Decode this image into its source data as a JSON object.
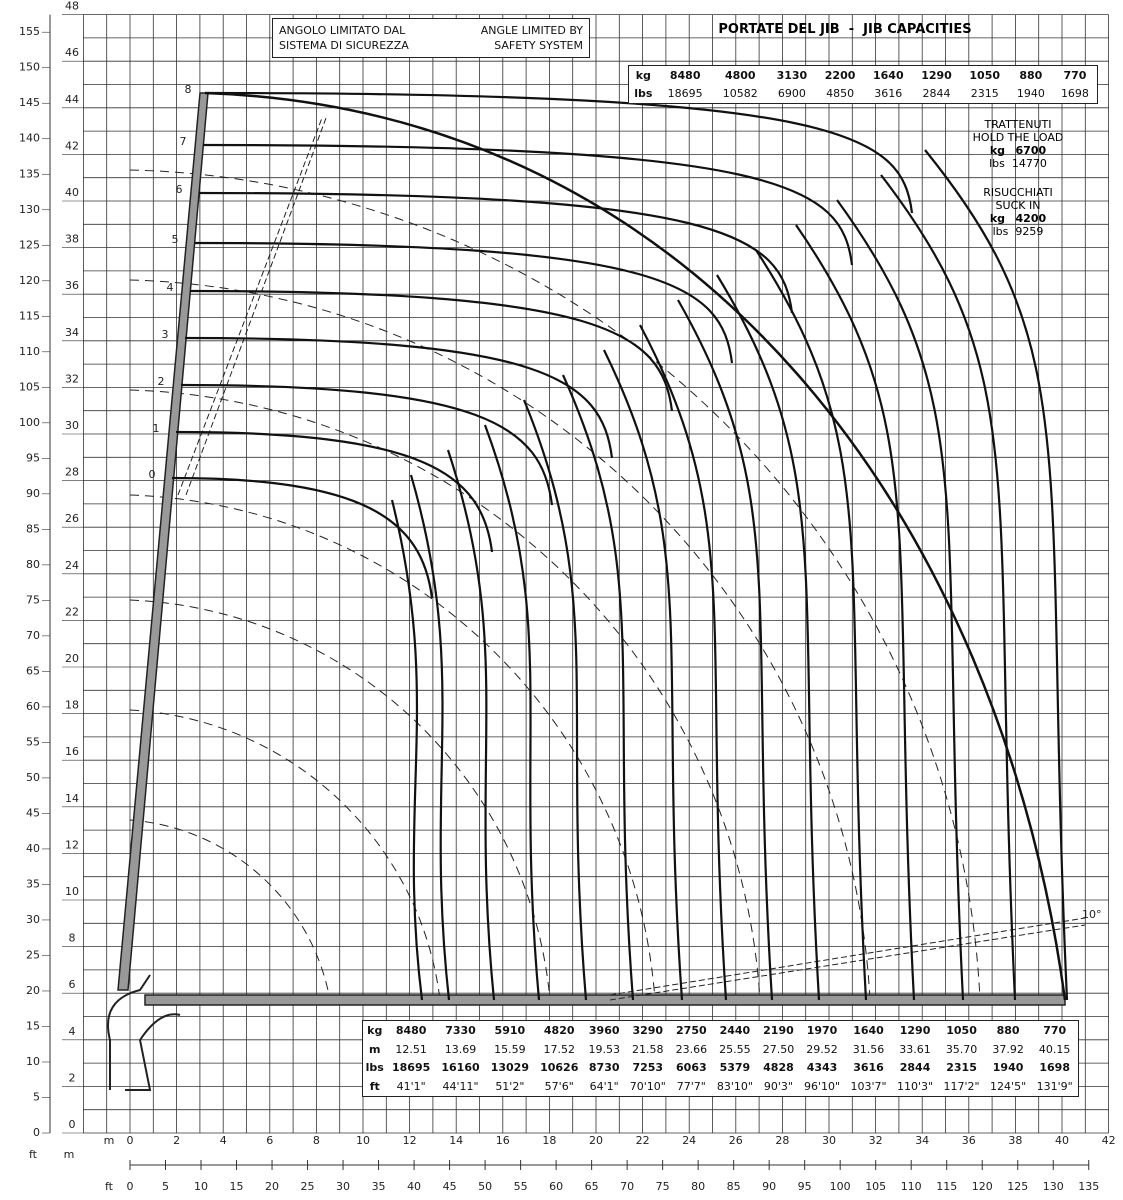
{
  "y_axis": {
    "m_unit": "m",
    "ft_unit": "ft",
    "m_ticks": [
      0,
      2,
      4,
      6,
      8,
      10,
      12,
      14,
      16,
      18,
      20,
      22,
      24,
      26,
      28,
      30,
      32,
      34,
      36,
      38,
      40,
      42,
      44,
      46,
      48
    ],
    "ft_ticks": [
      0,
      5,
      10,
      15,
      20,
      25,
      30,
      35,
      40,
      45,
      50,
      55,
      60,
      65,
      70,
      75,
      80,
      85,
      90,
      95,
      100,
      105,
      110,
      115,
      120,
      125,
      130,
      135,
      140,
      145,
      150,
      155
    ]
  },
  "x_axis": {
    "m_unit": "m",
    "ft_unit": "ft",
    "m_ticks": [
      0,
      2,
      4,
      6,
      8,
      10,
      12,
      14,
      16,
      18,
      20,
      22,
      24,
      26,
      28,
      30,
      32,
      34,
      36,
      38,
      40,
      42
    ],
    "ft_ticks": [
      0,
      5,
      10,
      15,
      20,
      25,
      30,
      35,
      40,
      45,
      50,
      55,
      60,
      65,
      70,
      75,
      80,
      85,
      90,
      95,
      100,
      105,
      110,
      115,
      120,
      125,
      130,
      135
    ]
  },
  "safety_note": {
    "it": [
      "ANGOLO LIMITATO DAL",
      "SISTEMA DI SICUREZZA"
    ],
    "en": [
      "ANGLE LIMITED BY",
      "SAFETY SYSTEM"
    ]
  },
  "jib_capacities": {
    "title": "PORTATE DEL JIB  -  JIB CAPACITIES",
    "kg_label": "kg",
    "kg": [
      "8480",
      "4800",
      "3130",
      "2200",
      "1640",
      "1290",
      "1050",
      "880",
      "770"
    ],
    "lbs_label": "lbs",
    "lbs": [
      "18695",
      "10582",
      "6900",
      "4850",
      "3616",
      "2844",
      "2315",
      "1940",
      "1698"
    ]
  },
  "hold": {
    "lines": [
      "TRATTENUTI",
      "HOLD THE LOAD"
    ],
    "kg_label": "kg",
    "kg": "6700",
    "lbs_label": "lbs",
    "lbs": "14770"
  },
  "suck": {
    "lines": [
      "RISUCCHIATI",
      "SUCK IN"
    ],
    "kg_label": "kg",
    "kg": "4200",
    "lbs_label": "lbs",
    "lbs": "9259"
  },
  "boom_sections": [
    "0",
    "1",
    "2",
    "3",
    "4",
    "5",
    "6",
    "7",
    "8"
  ],
  "jib_angle": "10°",
  "load_table": {
    "kg_label": "kg",
    "kg": [
      "8480",
      "7330",
      "5910",
      "4820",
      "3960",
      "3290",
      "2750",
      "2440",
      "2190",
      "1970",
      "1640",
      "1290",
      "1050",
      "880",
      "770"
    ],
    "m_label": "m",
    "m": [
      "12.51",
      "13.69",
      "15.59",
      "17.52",
      "19.53",
      "21.58",
      "23.66",
      "25.55",
      "27.50",
      "29.52",
      "31.56",
      "33.61",
      "35.70",
      "37.92",
      "40.15"
    ],
    "lbs_label": "lbs",
    "lbs": [
      "18695",
      "16160",
      "13029",
      "10626",
      "8730",
      "7253",
      "6063",
      "5379",
      "4828",
      "4343",
      "3616",
      "2844",
      "2315",
      "1940",
      "1698"
    ],
    "ft_label": "ft",
    "ft": [
      "41'1\"",
      "44'11\"",
      "51'2\"",
      "57'6\"",
      "64'1\"",
      "70'10\"",
      "77'7\"",
      "83'10\"",
      "90'3\"",
      "96'10\"",
      "103'7\"",
      "110'3\"",
      "117'2\"",
      "124'5\"",
      "131'9\""
    ]
  }
}
